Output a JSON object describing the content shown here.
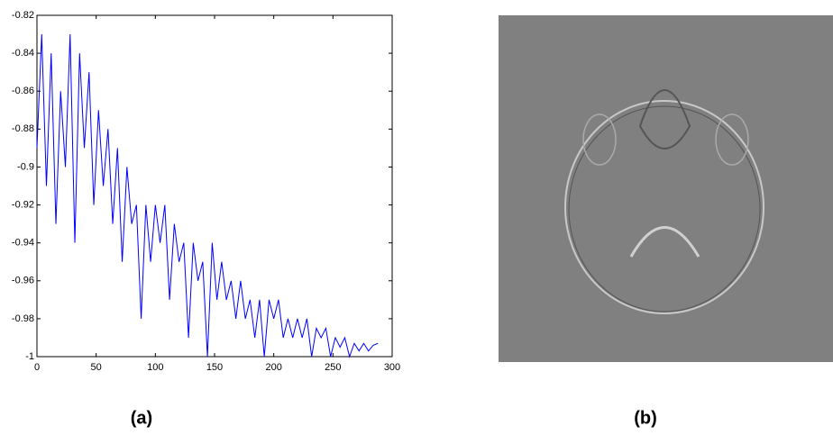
{
  "chart_data": {
    "type": "line",
    "color": "#0000ff",
    "x": [
      0,
      4,
      8,
      12,
      16,
      20,
      24,
      28,
      32,
      36,
      40,
      44,
      48,
      52,
      56,
      60,
      64,
      68,
      72,
      76,
      80,
      84,
      88,
      92,
      96,
      100,
      104,
      108,
      112,
      116,
      120,
      124,
      128,
      132,
      136,
      140,
      144,
      148,
      152,
      156,
      160,
      164,
      168,
      172,
      176,
      180,
      184,
      188,
      192,
      196,
      200,
      204,
      208,
      212,
      216,
      220,
      224,
      228,
      232,
      236,
      240,
      244,
      248,
      252,
      256,
      260,
      264,
      268,
      272,
      276,
      280,
      284,
      288
    ],
    "values": [
      -0.89,
      -0.83,
      -0.91,
      -0.84,
      -0.93,
      -0.86,
      -0.9,
      -0.83,
      -0.94,
      -0.84,
      -0.89,
      -0.85,
      -0.92,
      -0.87,
      -0.91,
      -0.88,
      -0.93,
      -0.89,
      -0.95,
      -0.9,
      -0.93,
      -0.92,
      -0.98,
      -0.92,
      -0.95,
      -0.92,
      -0.94,
      -0.92,
      -0.97,
      -0.93,
      -0.95,
      -0.94,
      -0.99,
      -0.94,
      -0.96,
      -0.95,
      -1,
      -0.94,
      -0.97,
      -0.95,
      -0.97,
      -0.96,
      -0.98,
      -0.96,
      -0.98,
      -0.97,
      -0.99,
      -0.97,
      -1,
      -0.97,
      -0.98,
      -0.97,
      -0.99,
      -0.98,
      -0.99,
      -0.98,
      -0.99,
      -0.98,
      -1,
      -0.985,
      -0.99,
      -0.985,
      -1,
      -0.99,
      -0.995,
      -0.99,
      -1,
      -0.993,
      -0.997,
      -0.993,
      -0.997,
      -0.994,
      -0.993
    ],
    "xlim": [
      0,
      300
    ],
    "xticks": [
      0,
      50,
      100,
      150,
      200,
      250,
      300
    ],
    "ylim": [
      -1,
      -0.82
    ],
    "yticks": [
      -0.82,
      -0.84,
      -0.86,
      -0.88,
      -0.9,
      -0.92,
      -0.94,
      -0.96,
      -0.98,
      -1
    ]
  },
  "captions": [
    "(a)",
    "(b)"
  ]
}
